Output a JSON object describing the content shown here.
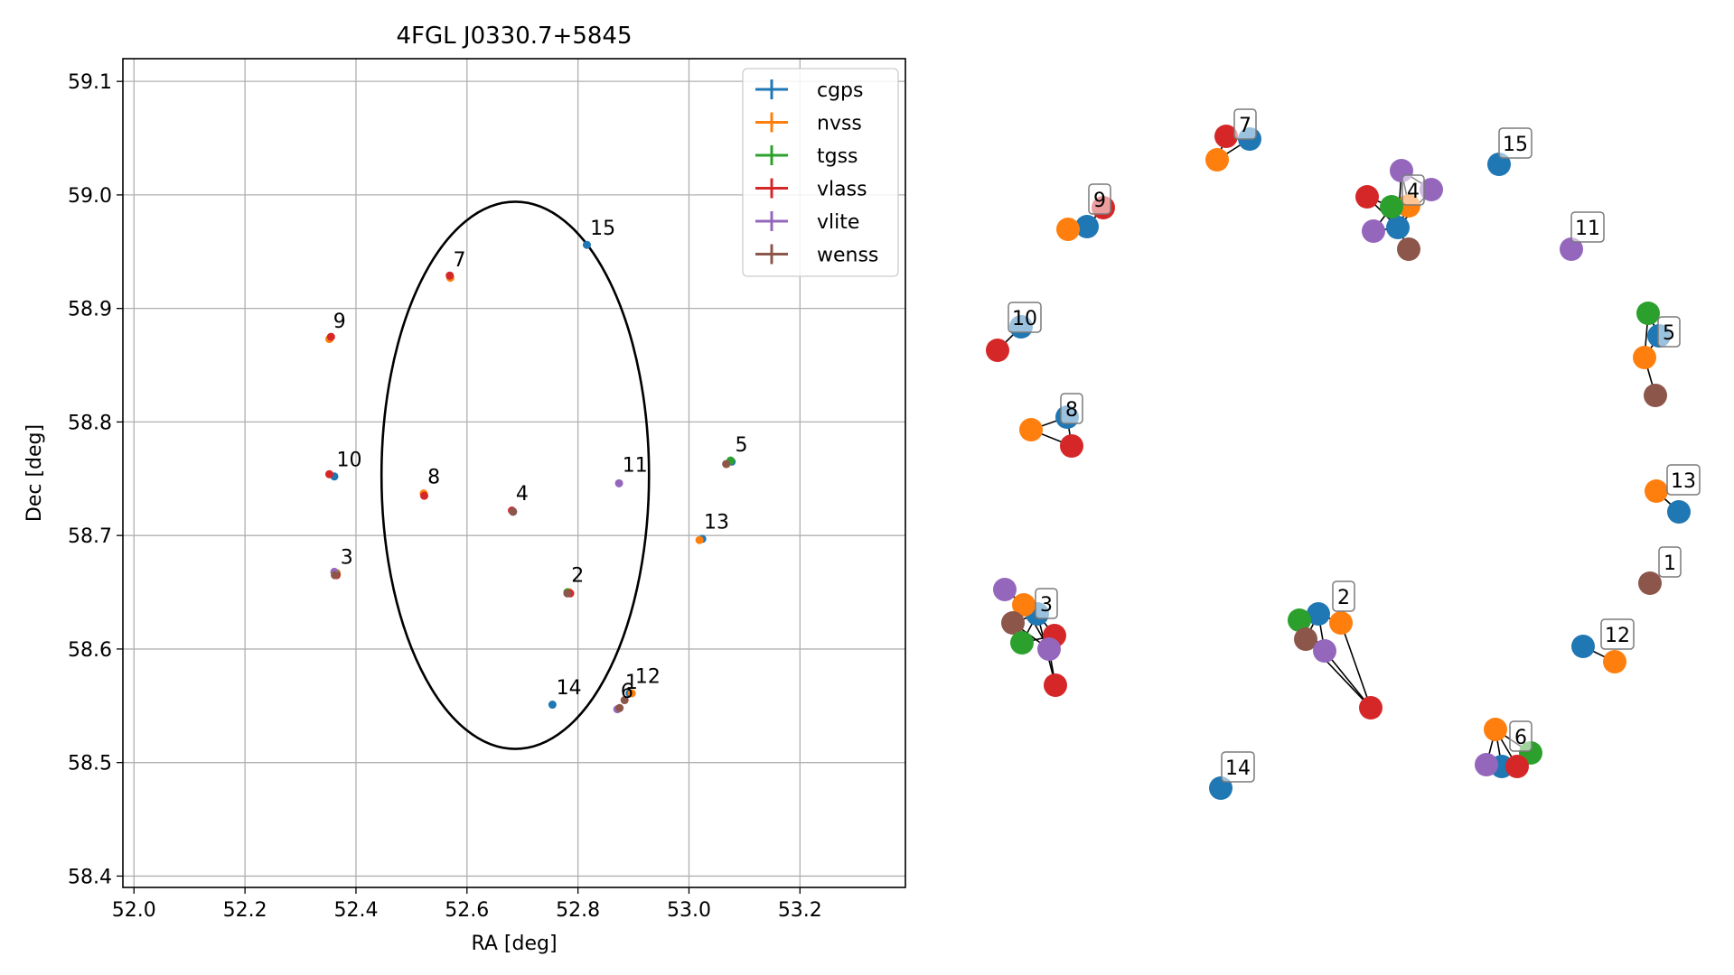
{
  "chart_data": [
    {
      "type": "scatter",
      "title": "4FGL J0330.7+5845",
      "xlabel": "RA [deg]",
      "ylabel": "Dec [deg]",
      "xlim": [
        51.98,
        53.39
      ],
      "ylim": [
        58.39,
        59.12
      ],
      "xticks": [
        "52.0",
        "52.2",
        "52.4",
        "52.6",
        "52.8",
        "53.0",
        "53.2"
      ],
      "yticks": [
        "58.4",
        "58.5",
        "58.6",
        "58.7",
        "58.8",
        "58.9",
        "59.0",
        "59.1"
      ],
      "grid": true,
      "legend_position": "top-right",
      "circle": {
        "center_ra": 52.687,
        "center_dec": 58.753,
        "radius_deg": 0.241
      },
      "series": [
        {
          "name": "cgps",
          "color": "#1f77b4",
          "points": [
            {
              "x": 52.361,
              "y": 58.752
            },
            {
              "x": 52.816,
              "y": 58.956
            },
            {
              "x": 52.754,
              "y": 58.551
            },
            {
              "x": 53.024,
              "y": 58.697
            },
            {
              "x": 53.077,
              "y": 58.765
            },
            {
              "x": 52.893,
              "y": 58.561
            }
          ]
        },
        {
          "name": "nvss",
          "color": "#ff7f0e",
          "points": [
            {
              "x": 52.352,
              "y": 58.873
            },
            {
              "x": 52.57,
              "y": 58.927
            },
            {
              "x": 52.522,
              "y": 58.737
            },
            {
              "x": 53.019,
              "y": 58.696
            },
            {
              "x": 53.068,
              "y": 58.763
            },
            {
              "x": 52.897,
              "y": 58.561
            },
            {
              "x": 52.365,
              "y": 58.667
            },
            {
              "x": 52.784,
              "y": 58.65
            }
          ]
        },
        {
          "name": "tgss",
          "color": "#2ca02c",
          "points": [
            {
              "x": 53.075,
              "y": 58.766
            },
            {
              "x": 52.365,
              "y": 58.666
            },
            {
              "x": 52.781,
              "y": 58.65
            },
            {
              "x": 52.683,
              "y": 58.721
            }
          ]
        },
        {
          "name": "vlass",
          "color": "#d62728",
          "points": [
            {
              "x": 52.355,
              "y": 58.875
            },
            {
              "x": 52.569,
              "y": 58.929
            },
            {
              "x": 52.352,
              "y": 58.754
            },
            {
              "x": 52.523,
              "y": 58.735
            },
            {
              "x": 52.365,
              "y": 58.665
            },
            {
              "x": 52.786,
              "y": 58.649
            },
            {
              "x": 52.681,
              "y": 58.722
            }
          ]
        },
        {
          "name": "vlite",
          "color": "#9467bd",
          "points": [
            {
              "x": 52.874,
              "y": 58.746
            },
            {
              "x": 52.871,
              "y": 58.547
            },
            {
              "x": 52.361,
              "y": 58.668
            },
            {
              "x": 52.683,
              "y": 58.721
            }
          ]
        },
        {
          "name": "wenss",
          "color": "#8c564b",
          "points": [
            {
              "x": 52.362,
              "y": 58.665
            },
            {
              "x": 52.781,
              "y": 58.649
            },
            {
              "x": 52.683,
              "y": 58.721
            },
            {
              "x": 52.884,
              "y": 58.555
            },
            {
              "x": 53.067,
              "y": 58.763
            },
            {
              "x": 52.875,
              "y": 58.548
            }
          ]
        }
      ],
      "annotations": [
        {
          "text": "1",
          "x": 52.885,
          "y": 58.565
        },
        {
          "text": "2",
          "x": 52.788,
          "y": 58.659
        },
        {
          "text": "3",
          "x": 52.372,
          "y": 58.675
        },
        {
          "text": "4",
          "x": 52.688,
          "y": 58.731
        },
        {
          "text": "5",
          "x": 53.083,
          "y": 58.774
        },
        {
          "text": "6",
          "x": 52.877,
          "y": 58.557
        },
        {
          "text": "7",
          "x": 52.575,
          "y": 58.937
        },
        {
          "text": "8",
          "x": 52.529,
          "y": 58.746
        },
        {
          "text": "9",
          "x": 52.359,
          "y": 58.883
        },
        {
          "text": "10",
          "x": 52.365,
          "y": 58.761
        },
        {
          "text": "11",
          "x": 52.88,
          "y": 58.756
        },
        {
          "text": "12",
          "x": 52.903,
          "y": 58.57
        },
        {
          "text": "13",
          "x": 53.027,
          "y": 58.706
        },
        {
          "text": "14",
          "x": 52.761,
          "y": 58.56
        },
        {
          "text": "15",
          "x": 52.822,
          "y": 58.965
        }
      ]
    },
    {
      "type": "network",
      "groups": [
        {
          "label": "1",
          "nodes": [
            "#8c564b"
          ]
        },
        {
          "label": "2",
          "nodes": [
            "#1f77b4",
            "#ff7f0e",
            "#2ca02c",
            "#8c564b",
            "#9467bd",
            "#d62728"
          ]
        },
        {
          "label": "3",
          "nodes": [
            "#1f77b4",
            "#ff7f0e",
            "#9467bd",
            "#8c564b",
            "#2ca02c",
            "#d62728",
            "#9467bd",
            "#d62728"
          ]
        },
        {
          "label": "4",
          "nodes": [
            "#1f77b4",
            "#ff7f0e",
            "#2ca02c",
            "#d62728",
            "#9467bd",
            "#9467bd",
            "#9467bd",
            "#8c564b"
          ]
        },
        {
          "label": "5",
          "nodes": [
            "#1f77b4",
            "#2ca02c",
            "#ff7f0e",
            "#8c564b"
          ]
        },
        {
          "label": "6",
          "nodes": [
            "#1f77b4",
            "#ff7f0e",
            "#2ca02c",
            "#d62728",
            "#9467bd"
          ]
        },
        {
          "label": "7",
          "nodes": [
            "#1f77b4",
            "#d62728",
            "#ff7f0e"
          ]
        },
        {
          "label": "8",
          "nodes": [
            "#1f77b4",
            "#ff7f0e",
            "#d62728"
          ]
        },
        {
          "label": "9",
          "nodes": [
            "#1f77b4",
            "#ff7f0e",
            "#d62728"
          ]
        },
        {
          "label": "10",
          "nodes": [
            "#1f77b4",
            "#d62728"
          ]
        },
        {
          "label": "11",
          "nodes": [
            "#9467bd"
          ]
        },
        {
          "label": "12",
          "nodes": [
            "#1f77b4",
            "#ff7f0e"
          ]
        },
        {
          "label": "13",
          "nodes": [
            "#ff7f0e",
            "#1f77b4"
          ]
        },
        {
          "label": "14",
          "nodes": [
            "#1f77b4"
          ]
        },
        {
          "label": "15",
          "nodes": [
            "#1f77b4"
          ]
        }
      ]
    }
  ]
}
